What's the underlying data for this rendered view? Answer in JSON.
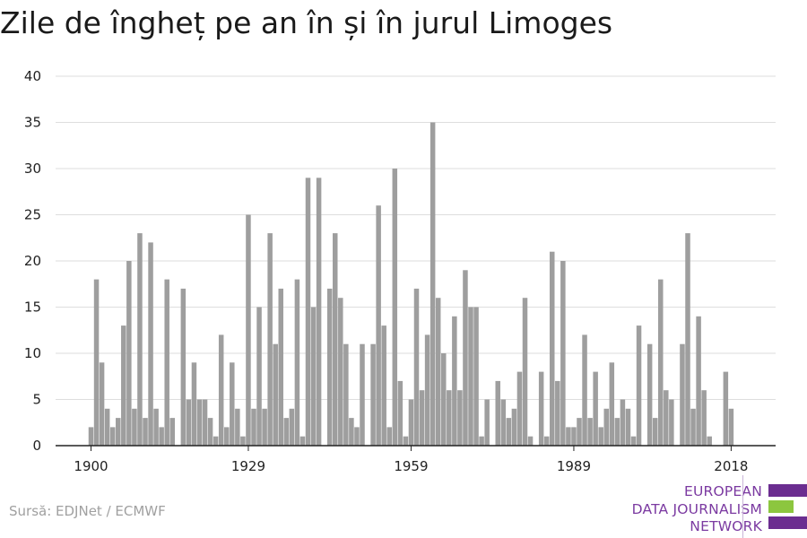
{
  "title": "Zile de îngheț pe an în și în jurul Limoges",
  "source": "Sursă: EDJNet / ECMWF",
  "logo": {
    "lines": [
      "EUROPEAN",
      "DATA JOURNALISM",
      "NETWORK"
    ],
    "colors": {
      "purple": "#6b2d90",
      "green": "#8cc63f"
    }
  },
  "colors": {
    "bar": "#9e9e9e",
    "grid": "#dedede",
    "axis": "#222222",
    "text": "#222222"
  },
  "chart_data": {
    "type": "bar",
    "title": "Zile de îngheț pe an în și în jurul Limoges",
    "xlabel": "",
    "ylabel": "",
    "ylim": [
      0,
      40
    ],
    "yticks": [
      0,
      5,
      10,
      15,
      20,
      25,
      30,
      35,
      40
    ],
    "xticks": [
      1900,
      1929,
      1959,
      1989,
      2018
    ],
    "grid": true,
    "years": [
      1900,
      1901,
      1902,
      1903,
      1904,
      1905,
      1906,
      1907,
      1908,
      1909,
      1910,
      1911,
      1912,
      1913,
      1914,
      1915,
      1916,
      1917,
      1918,
      1919,
      1920,
      1921,
      1922,
      1923,
      1924,
      1925,
      1926,
      1927,
      1928,
      1929,
      1930,
      1931,
      1932,
      1933,
      1934,
      1935,
      1936,
      1937,
      1938,
      1939,
      1940,
      1941,
      1942,
      1943,
      1944,
      1945,
      1946,
      1947,
      1948,
      1949,
      1950,
      1951,
      1952,
      1953,
      1954,
      1955,
      1956,
      1957,
      1958,
      1959,
      1960,
      1961,
      1962,
      1963,
      1964,
      1965,
      1966,
      1967,
      1968,
      1969,
      1970,
      1971,
      1972,
      1973,
      1974,
      1975,
      1976,
      1977,
      1978,
      1979,
      1980,
      1981,
      1982,
      1983,
      1984,
      1985,
      1986,
      1987,
      1988,
      1989,
      1990,
      1991,
      1992,
      1993,
      1994,
      1995,
      1996,
      1997,
      1998,
      1999,
      2000,
      2001,
      2002,
      2003,
      2004,
      2005,
      2006,
      2007,
      2008,
      2009,
      2010,
      2011,
      2012,
      2013,
      2014,
      2015,
      2016,
      2017,
      2018
    ],
    "values": [
      2,
      18,
      9,
      4,
      2,
      3,
      13,
      20,
      4,
      23,
      3,
      22,
      4,
      2,
      18,
      3,
      0,
      17,
      5,
      9,
      5,
      5,
      3,
      1,
      12,
      2,
      9,
      4,
      1,
      25,
      4,
      15,
      4,
      23,
      11,
      17,
      3,
      4,
      18,
      1,
      29,
      15,
      29,
      0,
      17,
      23,
      16,
      11,
      3,
      2,
      11,
      0,
      11,
      26,
      13,
      2,
      30,
      7,
      1,
      5,
      17,
      6,
      12,
      35,
      16,
      10,
      6,
      14,
      6,
      19,
      15,
      15,
      1,
      5,
      0,
      7,
      5,
      3,
      4,
      8,
      16,
      1,
      0,
      8,
      1,
      21,
      7,
      20,
      2,
      2,
      3,
      12,
      3,
      8,
      2,
      4,
      9,
      3,
      5,
      4,
      1,
      13,
      0,
      11,
      3,
      18,
      6,
      5,
      0,
      11,
      23,
      4,
      14,
      6,
      1,
      0,
      0,
      8,
      4
    ]
  }
}
